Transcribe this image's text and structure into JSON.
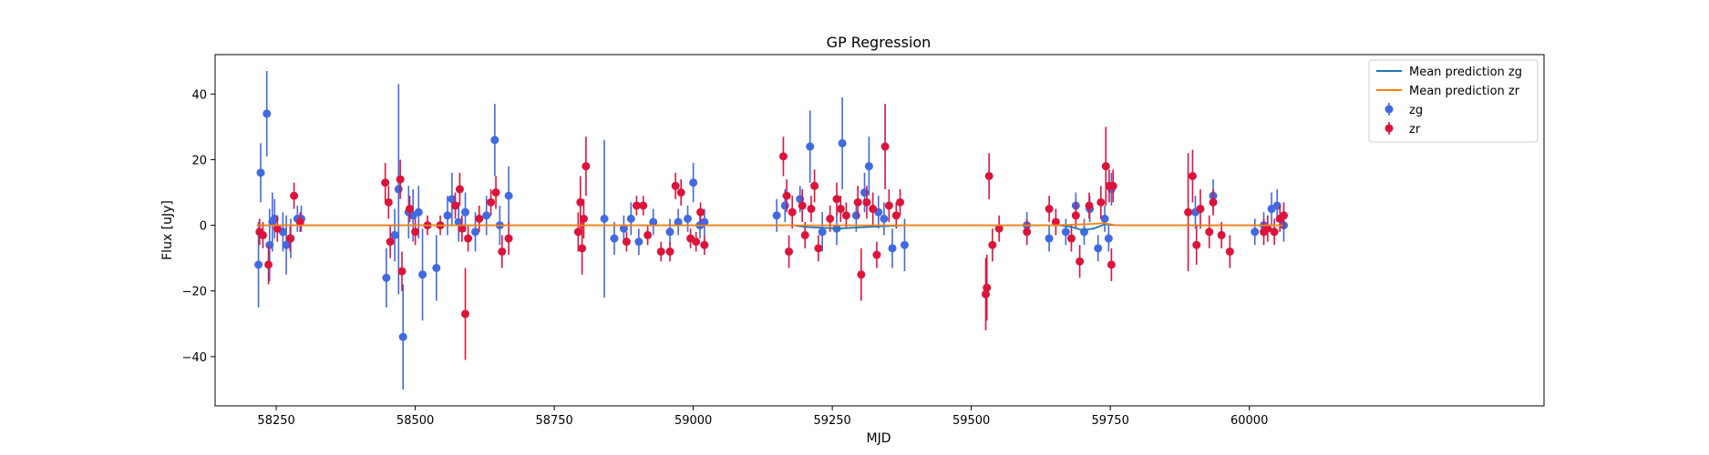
{
  "chart_data": {
    "type": "scatter",
    "title": "GP Regression",
    "xlabel": "MJD",
    "ylabel": "Flux [uJy]",
    "xlim": [
      58140,
      60530
    ],
    "ylim": [
      -55,
      52
    ],
    "x_ticks": [
      58250,
      58500,
      58750,
      59000,
      59250,
      59500,
      59750,
      60000
    ],
    "y_ticks": [
      -40,
      -20,
      0,
      20,
      40
    ],
    "x_tick_labels": [
      "58250",
      "58500",
      "58750",
      "59000",
      "59250",
      "59500",
      "59750",
      "60000"
    ],
    "y_tick_labels": [
      "−40",
      "−20",
      "0",
      "20",
      "40"
    ],
    "grid": false,
    "legend_position": "top-right",
    "legend": [
      {
        "label": "Mean prediction zg",
        "kind": "line",
        "color": "#1f77b4"
      },
      {
        "label": "Mean prediction zr",
        "kind": "line",
        "color": "#ff7f0e"
      },
      {
        "label": "zg",
        "kind": "errorbar",
        "color": "#4169e1"
      },
      {
        "label": "zr",
        "kind": "errorbar",
        "color": "#dc143c"
      }
    ],
    "series": [
      {
        "name": "Mean prediction zg",
        "kind": "line",
        "color": "#1f77b4",
        "x": [
          58215,
          59180,
          59200,
          59240,
          59260,
          59300,
          59340,
          59380,
          59660,
          59680,
          59700,
          59720,
          59740,
          59760,
          60060
        ],
        "y": [
          0,
          0,
          -0.5,
          -0.8,
          -1.0,
          -0.6,
          -0.3,
          0,
          0,
          -0.5,
          -1.5,
          -1.0,
          0.3,
          0,
          0
        ]
      },
      {
        "name": "Mean prediction zr",
        "kind": "line",
        "color": "#ff7f0e",
        "x": [
          58215,
          59640,
          59700,
          59740,
          59760,
          60060
        ],
        "y": [
          0,
          0,
          0.3,
          0.6,
          0,
          0
        ]
      },
      {
        "name": "zg",
        "kind": "errorbar",
        "color": "#4169e1",
        "points": [
          [
            58218,
            -12,
            13
          ],
          [
            58222,
            16,
            9
          ],
          [
            58233,
            34,
            13
          ],
          [
            58238,
            -6,
            11
          ],
          [
            58243,
            1,
            9
          ],
          [
            58247,
            2,
            6
          ],
          [
            58262,
            -2,
            6
          ],
          [
            58268,
            -6,
            9
          ],
          [
            58276,
            -4,
            6
          ],
          [
            58288,
            2,
            4
          ],
          [
            58295,
            2,
            4
          ],
          [
            58448,
            -16,
            9
          ],
          [
            58463,
            -3,
            8
          ],
          [
            58470,
            11,
            32
          ],
          [
            58478,
            -34,
            16
          ],
          [
            58488,
            4,
            8
          ],
          [
            58496,
            3,
            8
          ],
          [
            58506,
            4,
            8
          ],
          [
            58513,
            -15,
            14
          ],
          [
            58538,
            -13,
            10
          ],
          [
            58558,
            3,
            6
          ],
          [
            58566,
            8,
            8
          ],
          [
            58578,
            1,
            6
          ],
          [
            58590,
            4,
            6
          ],
          [
            58608,
            -2,
            6
          ],
          [
            58628,
            3,
            6
          ],
          [
            58643,
            26,
            11
          ],
          [
            58652,
            0,
            6
          ],
          [
            58668,
            9,
            9
          ],
          [
            58840,
            2,
            24
          ],
          [
            58858,
            -4,
            5
          ],
          [
            58875,
            -1,
            4
          ],
          [
            58888,
            2,
            5
          ],
          [
            58902,
            -5,
            4
          ],
          [
            58928,
            1,
            4
          ],
          [
            58958,
            -2,
            4
          ],
          [
            58973,
            1,
            4
          ],
          [
            58990,
            2,
            4
          ],
          [
            59000,
            13,
            6
          ],
          [
            59012,
            0,
            4
          ],
          [
            59020,
            1,
            4
          ],
          [
            59150,
            3,
            5
          ],
          [
            59165,
            6,
            5
          ],
          [
            59192,
            8,
            4
          ],
          [
            59210,
            24,
            11
          ],
          [
            59232,
            -2,
            6
          ],
          [
            59258,
            -1,
            5
          ],
          [
            59268,
            25,
            14
          ],
          [
            59293,
            3,
            5
          ],
          [
            59308,
            10,
            6
          ],
          [
            59316,
            18,
            9
          ],
          [
            59333,
            4,
            5
          ],
          [
            59343,
            2,
            5
          ],
          [
            59358,
            -7,
            6
          ],
          [
            59380,
            -6,
            8
          ],
          [
            59600,
            0,
            4
          ],
          [
            59640,
            -4,
            4
          ],
          [
            59670,
            -2,
            4
          ],
          [
            59688,
            6,
            4
          ],
          [
            59703,
            -2,
            4
          ],
          [
            59713,
            5,
            4
          ],
          [
            59728,
            -7,
            4
          ],
          [
            59740,
            2,
            4
          ],
          [
            59747,
            -4,
            4
          ],
          [
            59752,
            11,
            5
          ],
          [
            59903,
            4,
            5
          ],
          [
            59935,
            9,
            5
          ],
          [
            60010,
            -2,
            4
          ],
          [
            60026,
            0,
            4
          ],
          [
            60040,
            5,
            5
          ],
          [
            60050,
            6,
            5
          ],
          [
            60062,
            0,
            5
          ]
        ]
      },
      {
        "name": "zr",
        "kind": "errorbar",
        "color": "#dc143c",
        "points": [
          [
            58220,
            -2,
            4
          ],
          [
            58226,
            -3,
            4
          ],
          [
            58236,
            -12,
            6
          ],
          [
            58252,
            -1,
            4
          ],
          [
            58275,
            -4,
            4
          ],
          [
            58282,
            9,
            4
          ],
          [
            58293,
            1,
            3
          ],
          [
            58446,
            13,
            6
          ],
          [
            58452,
            7,
            5
          ],
          [
            58455,
            -5,
            5
          ],
          [
            58473,
            14,
            6
          ],
          [
            58476,
            -14,
            6
          ],
          [
            58490,
            5,
            4
          ],
          [
            58500,
            -2,
            4
          ],
          [
            58522,
            0,
            3
          ],
          [
            58545,
            0,
            3
          ],
          [
            58572,
            6,
            4
          ],
          [
            58580,
            11,
            5
          ],
          [
            58584,
            -1,
            4
          ],
          [
            58590,
            -27,
            14
          ],
          [
            58595,
            -4,
            4
          ],
          [
            58615,
            2,
            4
          ],
          [
            58636,
            7,
            4
          ],
          [
            58645,
            10,
            5
          ],
          [
            58656,
            -8,
            5
          ],
          [
            58668,
            -4,
            5
          ],
          [
            58793,
            -2,
            6
          ],
          [
            58797,
            7,
            8
          ],
          [
            58800,
            -7,
            8
          ],
          [
            58803,
            2,
            6
          ],
          [
            58807,
            18,
            9
          ],
          [
            58880,
            -5,
            3
          ],
          [
            58898,
            6,
            3
          ],
          [
            58910,
            6,
            3
          ],
          [
            58918,
            -3,
            3
          ],
          [
            58942,
            -8,
            3
          ],
          [
            58958,
            -8,
            3
          ],
          [
            58968,
            12,
            4
          ],
          [
            58978,
            10,
            4
          ],
          [
            58995,
            -4,
            3
          ],
          [
            59005,
            -5,
            3
          ],
          [
            59013,
            4,
            3
          ],
          [
            59020,
            -6,
            3
          ],
          [
            59162,
            21,
            6
          ],
          [
            59168,
            9,
            5
          ],
          [
            59172,
            -8,
            5
          ],
          [
            59178,
            4,
            5
          ],
          [
            59196,
            6,
            5
          ],
          [
            59201,
            -3,
            4
          ],
          [
            59212,
            5,
            4
          ],
          [
            59218,
            12,
            5
          ],
          [
            59225,
            -7,
            4
          ],
          [
            59246,
            2,
            4
          ],
          [
            59258,
            8,
            5
          ],
          [
            59265,
            5,
            4
          ],
          [
            59275,
            3,
            4
          ],
          [
            59296,
            7,
            5
          ],
          [
            59302,
            -15,
            8
          ],
          [
            59312,
            7,
            5
          ],
          [
            59323,
            5,
            5
          ],
          [
            59330,
            -9,
            4
          ],
          [
            59345,
            24,
            13
          ],
          [
            59352,
            6,
            5
          ],
          [
            59365,
            3,
            4
          ],
          [
            59372,
            7,
            4
          ],
          [
            59526,
            -21,
            11
          ],
          [
            59528,
            -19,
            10
          ],
          [
            59532,
            15,
            7
          ],
          [
            59538,
            -6,
            5
          ],
          [
            59550,
            -1,
            4
          ],
          [
            59600,
            -2,
            4
          ],
          [
            59640,
            5,
            4
          ],
          [
            59652,
            1,
            4
          ],
          [
            59680,
            -4,
            4
          ],
          [
            59688,
            3,
            4
          ],
          [
            59695,
            -11,
            5
          ],
          [
            59712,
            6,
            4
          ],
          [
            59733,
            7,
            5
          ],
          [
            59742,
            18,
            12
          ],
          [
            59748,
            12,
            5
          ],
          [
            59752,
            -12,
            5
          ],
          [
            59755,
            12,
            5
          ],
          [
            59890,
            4,
            18
          ],
          [
            59898,
            15,
            8
          ],
          [
            59905,
            -6,
            6
          ],
          [
            59912,
            5,
            6
          ],
          [
            59928,
            -2,
            5
          ],
          [
            59935,
            7,
            4
          ],
          [
            59950,
            -3,
            4
          ],
          [
            59965,
            -8,
            5
          ],
          [
            60026,
            -2,
            4
          ],
          [
            60033,
            -1,
            4
          ],
          [
            60045,
            -2,
            4
          ],
          [
            60055,
            2,
            4
          ],
          [
            60062,
            3,
            4
          ]
        ]
      }
    ]
  }
}
